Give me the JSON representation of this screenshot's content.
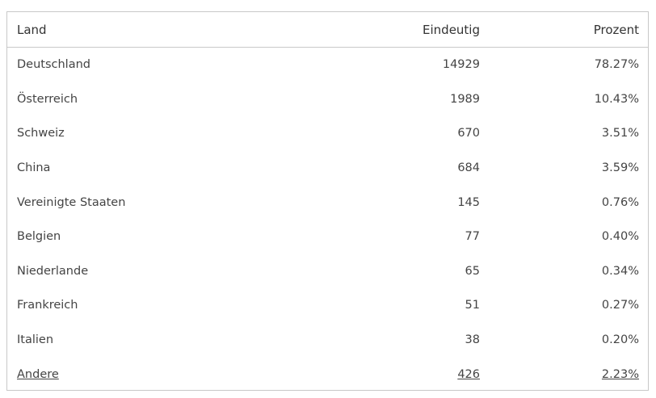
{
  "table": {
    "headers": {
      "land": "Land",
      "eindeutig": "Eindeutig",
      "prozent": "Prozent"
    },
    "rows": [
      {
        "land": "Deutschland",
        "eindeutig": "14929",
        "prozent": "78.27%"
      },
      {
        "land": "Österreich",
        "eindeutig": "1989",
        "prozent": "10.43%"
      },
      {
        "land": "Schweiz",
        "eindeutig": "670",
        "prozent": "3.51%"
      },
      {
        "land": "China",
        "eindeutig": "684",
        "prozent": "3.59%"
      },
      {
        "land": "Vereinigte Staaten",
        "eindeutig": "145",
        "prozent": "0.76%"
      },
      {
        "land": "Belgien",
        "eindeutig": "77",
        "prozent": "0.40%"
      },
      {
        "land": "Niederlande",
        "eindeutig": "65",
        "prozent": "0.34%"
      },
      {
        "land": "Frankreich",
        "eindeutig": "51",
        "prozent": "0.27%"
      },
      {
        "land": "Italien",
        "eindeutig": "38",
        "prozent": "0.20%"
      },
      {
        "land": "Andere",
        "eindeutig": "426",
        "prozent": "2.23%"
      }
    ]
  }
}
